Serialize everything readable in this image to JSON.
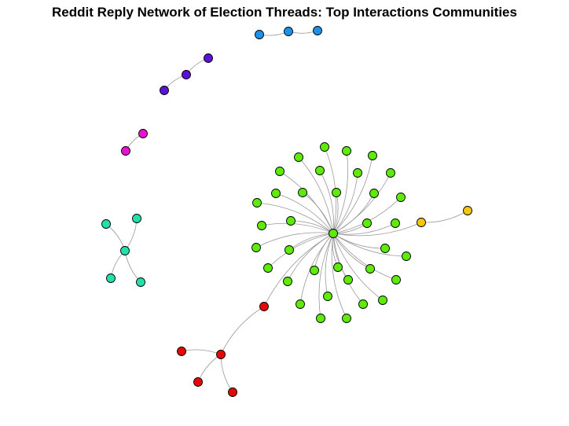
{
  "title": "Reddit Reply Network of Election Threads: Top Interactions Communities",
  "communities": [
    {
      "name": "blue",
      "color": "#1E90E6"
    },
    {
      "name": "purple",
      "color": "#5A12D8"
    },
    {
      "name": "magenta",
      "color": "#E614D2"
    },
    {
      "name": "teal",
      "color": "#22E0AA"
    },
    {
      "name": "green",
      "color": "#5EEB0A"
    },
    {
      "name": "yellow",
      "color": "#F5C60E"
    },
    {
      "name": "red",
      "color": "#E60808"
    }
  ]
}
